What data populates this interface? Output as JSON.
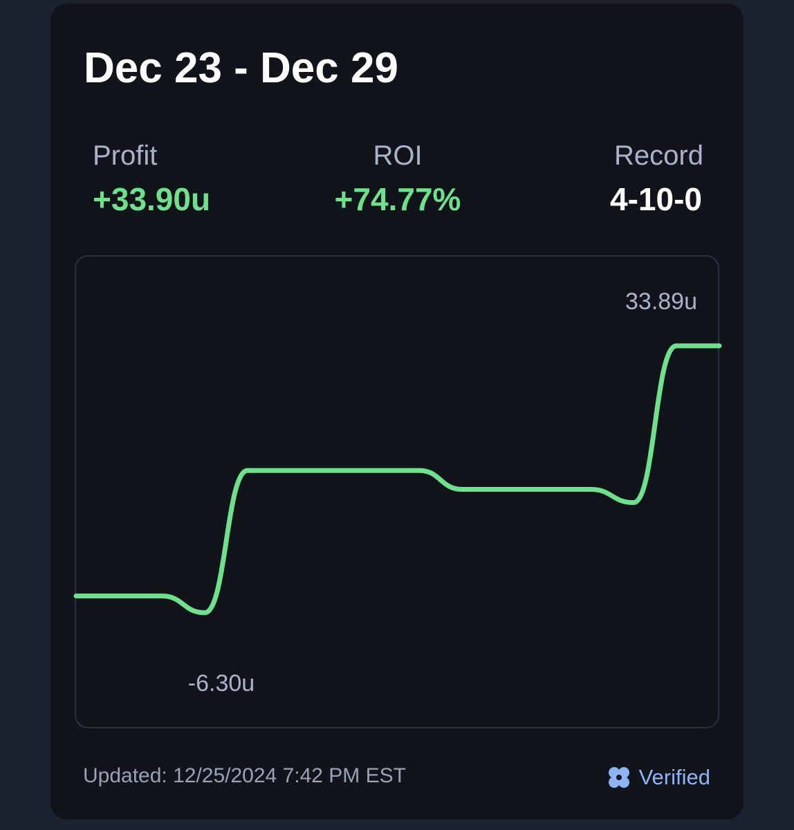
{
  "header": {
    "title": "Dec 23 - Dec 29"
  },
  "stats": [
    {
      "label": "Profit",
      "value": "+33.90u"
    },
    {
      "label": "ROI",
      "value": "+74.77%"
    },
    {
      "label": "Record",
      "value": "4-10-0"
    }
  ],
  "chart_data": {
    "type": "line",
    "categories": [
      null,
      null,
      null,
      null,
      null,
      null,
      null,
      null,
      null,
      null,
      null,
      null,
      null,
      null,
      null,
      null
    ],
    "series": [
      {
        "color": "#6fe08b",
        "values": [
          -2,
          -2,
          -2,
          -4.4,
          16,
          16,
          16,
          16,
          16,
          13.3,
          13.3,
          13.3,
          13.3,
          11.4,
          33.89,
          33.89
        ]
      }
    ],
    "ylim": [
      -6.3,
      33.89
    ],
    "max_label": "33.89u",
    "min_label": "-6.30u"
  },
  "footer": {
    "updated": "Updated: 12/25/2024 7:42 PM EST",
    "badge": "Verified"
  }
}
